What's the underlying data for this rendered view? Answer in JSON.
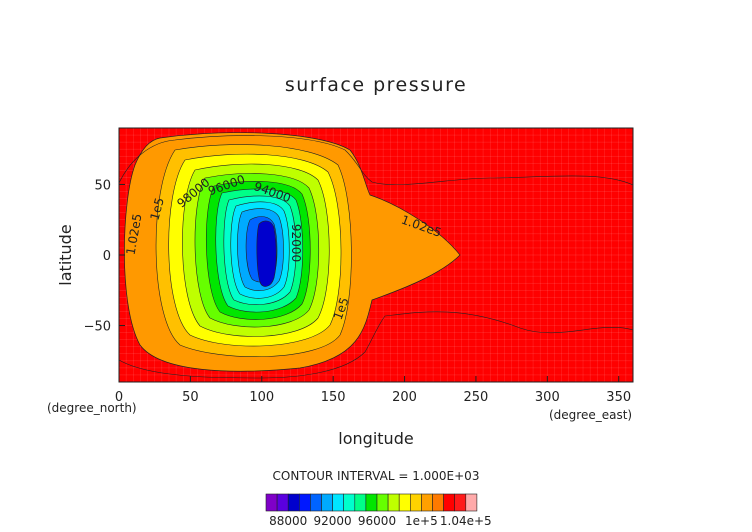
{
  "chart_data": {
    "type": "heatmap",
    "title": "surface pressure",
    "xlabel": "longitude",
    "ylabel": "latitude",
    "x_unit": "(degree_east)",
    "y_unit": "(degree_north)",
    "xlim": [
      0,
      360
    ],
    "ylim": [
      -90,
      90
    ],
    "x_ticks": [
      "0",
      "50",
      "100",
      "150",
      "200",
      "250",
      "300",
      "350"
    ],
    "y_ticks": [
      "50",
      "0",
      "−50"
    ],
    "contour_interval_text": "CONTOUR INTERVAL = 1.000E+03",
    "contour_labels": [
      "1.02e5",
      "1e5",
      "98000",
      "96000",
      "94000",
      "92000",
      "1.02e5",
      "1e5"
    ],
    "colorbar": {
      "levels": [
        86000,
        87000,
        88000,
        89000,
        90000,
        91000,
        92000,
        93000,
        94000,
        95000,
        96000,
        97000,
        98000,
        99000,
        100000,
        101000,
        102000,
        103000,
        104000,
        105000
      ],
      "colors": [
        "#7f00c8",
        "#5a00e0",
        "#0000cd",
        "#0018ff",
        "#0064ff",
        "#00aaff",
        "#00e6ff",
        "#00ffcc",
        "#00ff88",
        "#00e600",
        "#66ff00",
        "#bfff00",
        "#ffff00",
        "#ffd200",
        "#ffa000",
        "#ff7a00",
        "#ff0000",
        "#ff1a1a",
        "#ffaaaa"
      ],
      "tick_labels": [
        "88000",
        "92000",
        "96000",
        "1e+5",
        "1.04e+5"
      ]
    }
  }
}
